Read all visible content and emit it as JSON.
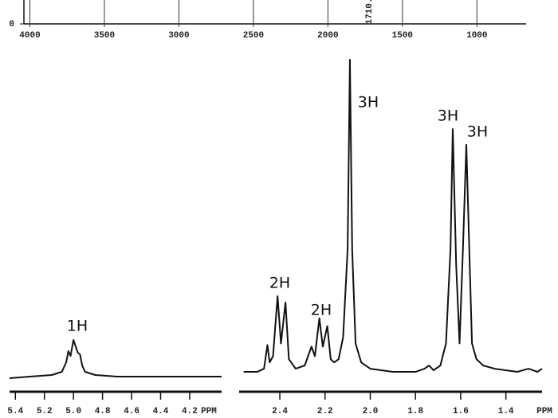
{
  "chart_data": [
    {
      "type": "line",
      "xlim": [
        4040,
        670
      ],
      "xticks": [
        4000,
        3500,
        3000,
        2500,
        2000,
        1500,
        1000
      ],
      "ylim": [
        0,
        10
      ],
      "yticks": [
        0
      ],
      "annotations": [
        "1710."
      ]
    },
    {
      "type": "line",
      "xlim": [
        5.44,
        3.98
      ],
      "xticks": [
        5.4,
        5.2,
        {
          "value": 5,
          "label": "5.0"
        },
        4.8,
        4.6,
        4.4,
        4.2
      ],
      "x_label": "PPM",
      "ylim": [
        0,
        100
      ],
      "series": [
        {
          "color": "#111111",
          "x": [
            5.44,
            5.3,
            5.15,
            5.08,
            5.05,
            5.035,
            5.02,
            5.0,
            4.985,
            4.97,
            4.955,
            4.94,
            4.92,
            4.85,
            4.7,
            4.5,
            4.2,
            3.98
          ],
          "values": [
            0,
            0.5,
            1,
            2,
            5,
            8.5,
            7,
            12,
            10,
            8,
            7.5,
            4,
            2,
            1,
            0.5,
            0.5,
            0.5,
            0.5
          ]
        }
      ],
      "annotations": [
        "1H"
      ]
    },
    {
      "type": "line",
      "xlim": [
        2.58,
        1.24
      ],
      "xticks": [
        2.4,
        2.2,
        {
          "value": 2,
          "label": "2.0"
        },
        1.8,
        1.6,
        1.4
      ],
      "x_label": "PPM",
      "ylim": [
        0,
        100
      ],
      "series": [
        {
          "color": "#111111",
          "x": [
            2.56,
            2.5,
            2.47,
            2.455,
            2.445,
            2.43,
            2.41,
            2.395,
            2.375,
            2.36,
            2.33,
            2.29,
            2.26,
            2.245,
            2.225,
            2.21,
            2.19,
            2.175,
            2.16,
            2.14,
            2.12,
            2.1,
            2.09,
            2.08,
            2.065,
            2.04,
            2.0,
            1.9,
            1.8,
            1.76,
            1.74,
            1.72,
            1.69,
            1.665,
            1.645,
            1.635,
            1.62,
            1.605,
            1.59,
            1.575,
            1.56,
            1.55,
            1.53,
            1.5,
            1.45,
            1.4,
            1.35,
            1.3,
            1.26,
            1.24
          ],
          "values": [
            1,
            1,
            2,
            9.5,
            4,
            6,
            25,
            10,
            23,
            5,
            2,
            3,
            9,
            6,
            18,
            9,
            15.5,
            5,
            4,
            5,
            12,
            40,
            100,
            40,
            10,
            4,
            2,
            1,
            1,
            2,
            3,
            1.5,
            3,
            10,
            40,
            78,
            35,
            10,
            40,
            73,
            35,
            10,
            5,
            3,
            2,
            1.5,
            1,
            2,
            1,
            2
          ]
        }
      ],
      "annotations": [
        "2H",
        "2H",
        "3H",
        "3H",
        "3H"
      ]
    }
  ]
}
